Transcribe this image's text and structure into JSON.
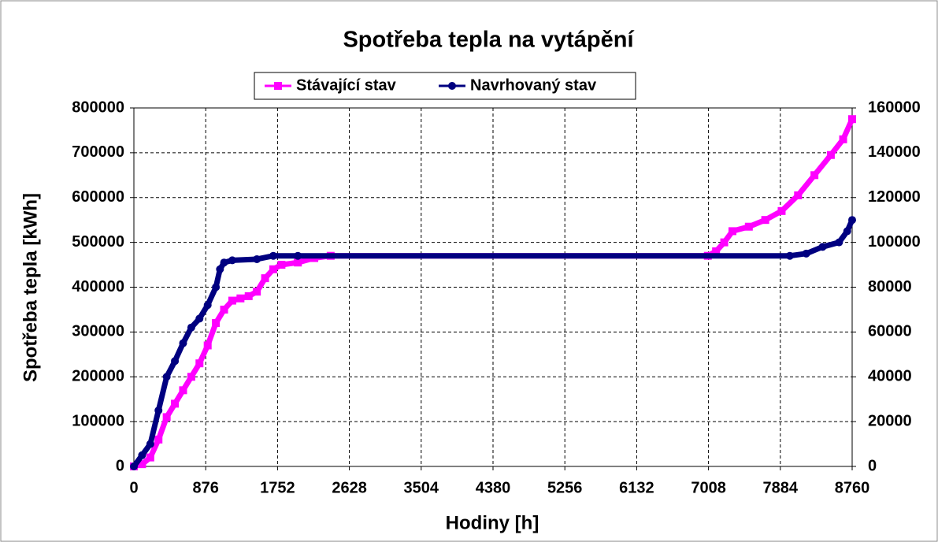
{
  "chart_data": {
    "type": "line",
    "title": "Spotřeba tepla na vytápění",
    "xlabel": "Hodiny [h]",
    "ylabel": "Spotřeba tepla [kWh]",
    "xlim": [
      0,
      8760
    ],
    "xticks": [
      0,
      876,
      1752,
      2628,
      3504,
      4380,
      5256,
      6132,
      7008,
      7884,
      8760
    ],
    "ylim": [
      0,
      800000
    ],
    "yticks": [
      0,
      100000,
      200000,
      300000,
      400000,
      500000,
      600000,
      700000,
      800000
    ],
    "y2lim": [
      0,
      160000
    ],
    "y2ticks": [
      0,
      20000,
      40000,
      60000,
      80000,
      100000,
      120000,
      140000,
      160000
    ],
    "grid": true,
    "legend": "top",
    "series": [
      {
        "name": "Stávající stav",
        "color": "#ff00ff",
        "marker": "square",
        "x": [
          0,
          100,
          200,
          300,
          400,
          500,
          600,
          700,
          800,
          900,
          1000,
          1100,
          1200,
          1300,
          1400,
          1500,
          1600,
          1700,
          1800,
          2000,
          2200,
          2400,
          7000,
          7100,
          7200,
          7300,
          7500,
          7700,
          7900,
          8100,
          8300,
          8500,
          8650,
          8760
        ],
        "values": [
          0,
          5000,
          20000,
          60000,
          110000,
          140000,
          170000,
          200000,
          230000,
          270000,
          320000,
          350000,
          370000,
          375000,
          380000,
          390000,
          420000,
          440000,
          450000,
          455000,
          465000,
          470000,
          470000,
          480000,
          500000,
          525000,
          535000,
          550000,
          570000,
          605000,
          650000,
          695000,
          730000,
          775000
        ]
      },
      {
        "name": "Navrhovaný stav",
        "color": "#000080",
        "marker": "circle",
        "axis": "y2",
        "x": [
          0,
          100,
          200,
          300,
          400,
          500,
          600,
          700,
          800,
          900,
          1000,
          1050,
          1100,
          1200,
          1500,
          1700,
          2000,
          8000,
          8200,
          8400,
          8600,
          8700,
          8760
        ],
        "values": [
          0,
          5000,
          10000,
          25000,
          40000,
          47000,
          55000,
          62000,
          66000,
          72000,
          80000,
          88000,
          91000,
          92000,
          92500,
          94000,
          94000,
          94000,
          95000,
          98000,
          100000,
          105000,
          110000
        ]
      }
    ]
  }
}
